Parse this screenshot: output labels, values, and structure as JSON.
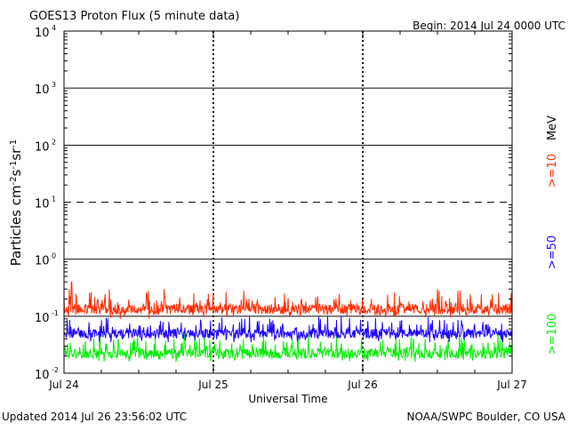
{
  "chart_data": {
    "type": "line",
    "title": "GOES13 Proton Flux (5 minute data)",
    "begin_label": "Begin: 2014 Jul 24 0000 UTC",
    "xlabel": "Universal Time",
    "ylabel_main": "Particles cm",
    "y_scale": "log",
    "ylim": [
      0.01,
      10000
    ],
    "y_ticks": [
      {
        "base": "10",
        "exp": "-2"
      },
      {
        "base": "10",
        "exp": "-1"
      },
      {
        "base": "10",
        "exp": "0"
      },
      {
        "base": "10",
        "exp": "1"
      },
      {
        "base": "10",
        "exp": "2"
      },
      {
        "base": "10",
        "exp": "3"
      },
      {
        "base": "10",
        "exp": "4"
      }
    ],
    "x_ticks": [
      "Jul 24",
      "Jul 25",
      "Jul 26",
      "Jul 27"
    ],
    "xlim": [
      "2014-07-24 00:00",
      "2014-07-27 00:00"
    ],
    "reference_line": {
      "value": 10,
      "style": "dashed"
    },
    "grid": "horizontal lines at each decade; dashed day separators",
    "legend_placement": "right, vertical",
    "legend_unit": "MeV",
    "series": [
      {
        "name": ">=10",
        "color": "#ff2a00",
        "typical_range": [
          0.09,
          0.3
        ],
        "spike_max": 0.4
      },
      {
        "name": ">=50",
        "color": "#1a00ff",
        "typical_range": [
          0.035,
          0.1
        ]
      },
      {
        "name": ">=100",
        "color": "#00ee00",
        "typical_range": [
          0.015,
          0.05
        ]
      }
    ]
  },
  "footer": {
    "updated": "Updated 2014 Jul 26 23:56:02 UTC",
    "credit": "NOAA/SWPC Boulder, CO USA"
  }
}
